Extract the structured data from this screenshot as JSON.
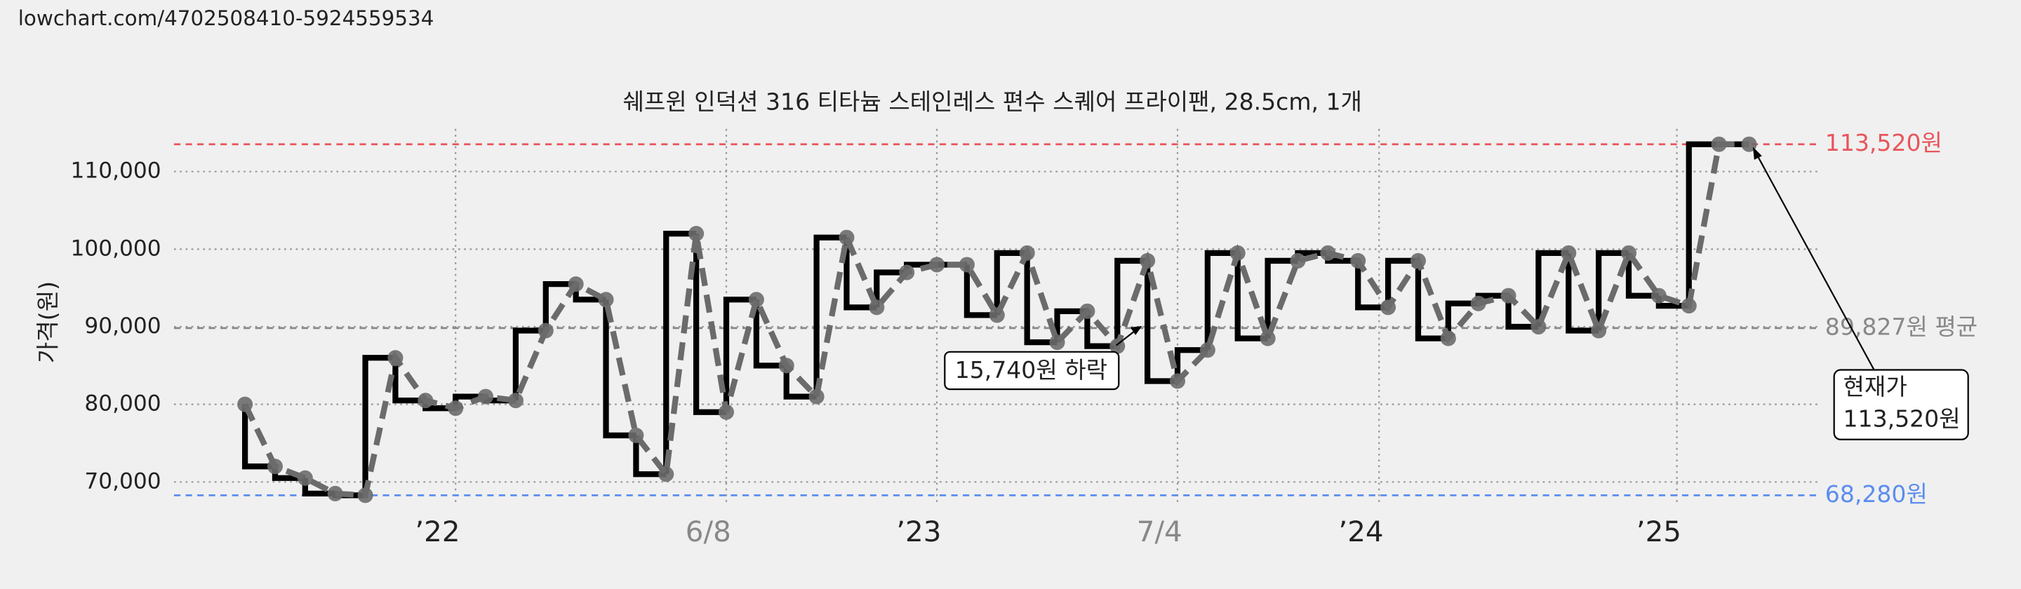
{
  "url": "lowchart.com/4702508410-5924559534",
  "chart_data": {
    "type": "line",
    "title": "쉐프윈 인덕션 316 티타늄 스테인레스 편수 스퀘어 프라이팬, 28.5cm, 1개",
    "y_label": "가격(원)",
    "categories": [
      null,
      null,
      null,
      null,
      null,
      null,
      null,
      null,
      null,
      null,
      null,
      null,
      null,
      null,
      null,
      null,
      null,
      null,
      null,
      null,
      null,
      null,
      null,
      null,
      null,
      null,
      null,
      null,
      null,
      null,
      null,
      null,
      null,
      null,
      null,
      null,
      null,
      null,
      null,
      null,
      null,
      null,
      null,
      null,
      null,
      null,
      null,
      null,
      null,
      null,
      null
    ],
    "series": [
      {
        "color": "#6b6b6b",
        "step_color": "#000000",
        "values": [
          80000,
          72000,
          70500,
          68500,
          68280,
          86000,
          80500,
          79500,
          81000,
          80500,
          89500,
          95500,
          93500,
          76000,
          71000,
          102000,
          79000,
          93500,
          85000,
          81000,
          101500,
          92500,
          97000,
          98000,
          98000,
          91500,
          99500,
          88000,
          92000,
          87500,
          98500,
          83000,
          87000,
          99500,
          88500,
          98500,
          99500,
          98500,
          92500,
          98500,
          88500,
          93000,
          94000,
          90000,
          99500,
          89500,
          99500,
          94000,
          92700,
          113520,
          113520
        ]
      }
    ],
    "xlim": [
      -2.36,
      52.27
    ],
    "xticks": [
      {
        "value": 7,
        "label": "’22",
        "color": "#222222"
      },
      {
        "value": 16,
        "label": "6/8",
        "color": "#888888"
      },
      {
        "value": 23,
        "label": "’23",
        "color": "#222222"
      },
      {
        "value": 31,
        "label": "7/4",
        "color": "#888888"
      },
      {
        "value": 37.7,
        "label": "’24",
        "color": "#222222"
      },
      {
        "value": 47.6,
        "label": "’25",
        "color": "#222222"
      }
    ],
    "ylim": [
      67000,
      115500
    ],
    "yticks": [
      {
        "value": 70000,
        "label": "70,000"
      },
      {
        "value": 80000,
        "label": "80,000"
      },
      {
        "value": 90000,
        "label": "90,000"
      },
      {
        "value": 100000,
        "label": "100,000"
      },
      {
        "value": 110000,
        "label": "110,000"
      }
    ],
    "grid": true,
    "reference_lines": [
      {
        "value": 113520,
        "label": "113,520원",
        "color": "#e8555a"
      },
      {
        "value": 89827,
        "label": "89,827원 평균",
        "color": "#888888"
      },
      {
        "value": 68280,
        "label": "68,280원",
        "color": "#5b8def"
      }
    ],
    "annotations": [
      {
        "text": "15,740원 하락"
      },
      {
        "lines": [
          "현재가",
          "113,520원"
        ]
      }
    ]
  }
}
